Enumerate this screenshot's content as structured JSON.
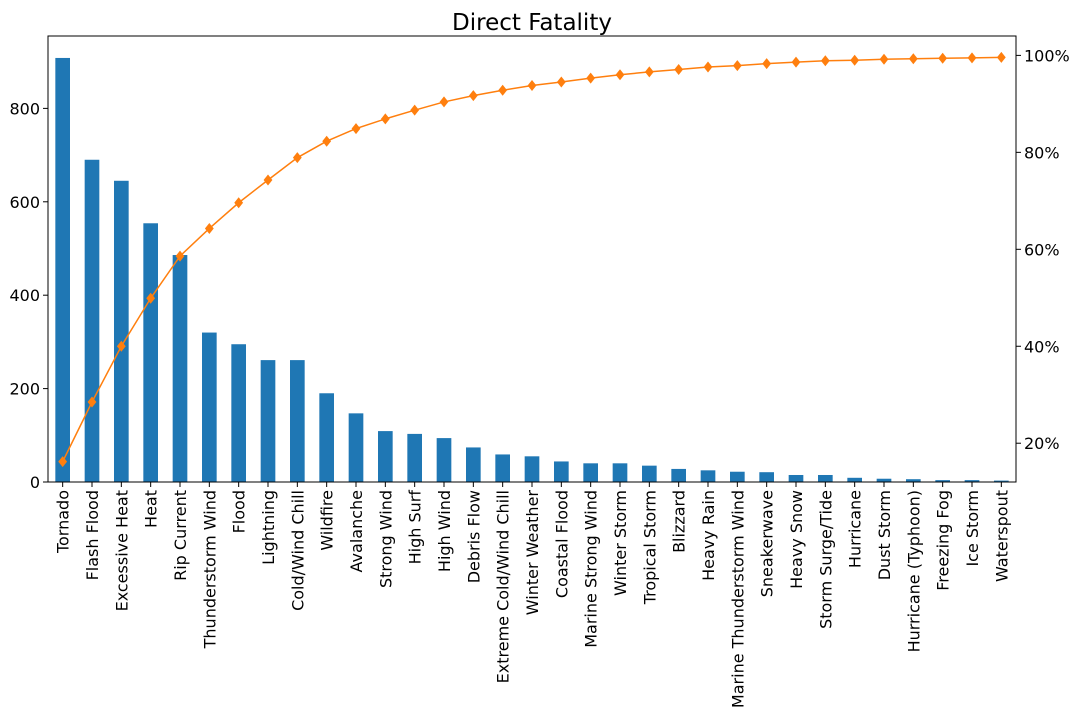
{
  "chart_data": {
    "type": "bar",
    "title": "Direct Fatality",
    "xlabel": "",
    "ylabel": "",
    "categories": [
      "Tornado",
      "Flash Flood",
      "Excessive Heat",
      "Heat",
      "Rip Current",
      "Thunderstorm Wind",
      "Flood",
      "Lightning",
      "Cold/Wind Chill",
      "Wildfire",
      "Avalanche",
      "Strong Wind",
      "High Surf",
      "High Wind",
      "Debris Flow",
      "Extreme Cold/Wind Chill",
      "Winter Weather",
      "Coastal Flood",
      "Marine Strong Wind",
      "Winter Storm",
      "Tropical Storm",
      "Blizzard",
      "Heavy Rain",
      "Marine Thunderstorm Wind",
      "Sneakerwave",
      "Heavy Snow",
      "Storm Surge/Tide",
      "Hurricane",
      "Dust Storm",
      "Hurricane (Typhoon)",
      "Freezing Fog",
      "Ice Storm",
      "Waterspout"
    ],
    "series": [
      {
        "type": "bar",
        "color": "#1f77b4",
        "values": [
          908,
          690,
          645,
          554,
          486,
          320,
          295,
          261,
          261,
          190,
          147,
          109,
          103,
          94,
          74,
          59,
          55,
          44,
          40,
          40,
          35,
          28,
          25,
          22,
          21,
          15,
          15,
          9,
          7,
          6,
          4,
          4,
          3
        ]
      },
      {
        "type": "line",
        "axis": "right",
        "color": "#ff7f0e",
        "marker": "diamond",
        "values": [
          16.2,
          28.5,
          40.0,
          49.9,
          58.6,
          64.3,
          69.6,
          74.3,
          78.9,
          82.3,
          84.9,
          86.9,
          88.7,
          90.4,
          91.7,
          92.8,
          93.8,
          94.5,
          95.3,
          96.0,
          96.6,
          97.1,
          97.6,
          97.9,
          98.3,
          98.6,
          98.9,
          99.0,
          99.2,
          99.3,
          99.4,
          99.5,
          99.6
        ]
      }
    ],
    "ylim": [
      0,
      955
    ],
    "yticks": [
      0,
      200,
      400,
      600,
      800
    ],
    "y2lim": [
      12,
      104
    ],
    "y2ticks": [
      20,
      40,
      60,
      80,
      100
    ],
    "y2tick_labels": [
      "20%",
      "40%",
      "60%",
      "80%",
      "100%"
    ],
    "grid": false,
    "legend": "none"
  }
}
